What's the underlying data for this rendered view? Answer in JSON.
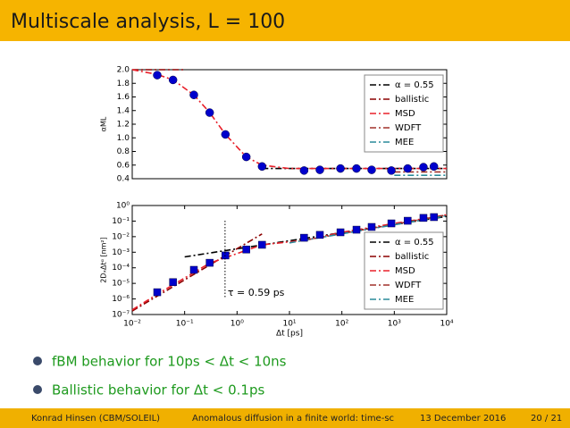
{
  "header": {
    "title": "Multiscale analysis, L = 100"
  },
  "chart_data": [
    {
      "type": "line",
      "ylabel": "αML",
      "xscale": "log",
      "xlim": [
        0.01,
        10000
      ],
      "ylim": [
        0.4,
        2.0
      ],
      "yticks": [
        0.4,
        0.6,
        0.8,
        {
          "value": 1,
          "label": "1.0"
        },
        1.2,
        1.4,
        1.6,
        1.8,
        {
          "value": 2,
          "label": "2.0"
        }
      ],
      "legend": "upper right",
      "linestyle": "dashdot",
      "series": [
        {
          "name": "α = 0.55",
          "color": "#000000",
          "x": [
            3,
            10000
          ],
          "values": [
            0.55,
            0.55
          ]
        },
        {
          "name": "ballistic",
          "color": "#8b0000",
          "x": [
            0.01,
            0.1
          ],
          "values": [
            2,
            2
          ]
        },
        {
          "name": "MSD",
          "color": "#e8202a",
          "x": [
            0.01,
            0.03,
            0.06,
            0.15,
            0.3,
            0.6,
            1.5,
            3,
            10,
            100,
            1000,
            10000
          ],
          "values": [
            2,
            1.93,
            1.85,
            1.63,
            1.37,
            1.05,
            0.72,
            0.6,
            0.55,
            0.55,
            0.55,
            0.55
          ]
        },
        {
          "name": "WDFT",
          "color": "#a0302a",
          "x": [
            1000,
            10000
          ],
          "values": [
            0.5,
            0.5
          ]
        },
        {
          "name": "MEE",
          "color": "#2a8a9a",
          "x": [
            1000,
            10000
          ],
          "values": [
            0.45,
            0.45
          ]
        }
      ],
      "markers": {
        "marker": "circle",
        "color": "#0000cc",
        "x": [
          0.03,
          0.06,
          0.15,
          0.3,
          0.6,
          1.5,
          3,
          19,
          38,
          94,
          190,
          370,
          880,
          1800,
          3600,
          5700
        ],
        "values": [
          1.92,
          1.85,
          1.63,
          1.37,
          1.05,
          0.72,
          0.58,
          0.52,
          0.53,
          0.55,
          0.55,
          0.53,
          0.52,
          0.55,
          0.57,
          0.58
        ]
      }
    },
    {
      "type": "line",
      "ylabel": "2DₓΔtᵅ [nm²]",
      "xlabel": "Δt [ps]",
      "xscale": "log",
      "yscale": "log",
      "xlim": [
        0.01,
        10000
      ],
      "ylim": [
        1e-07,
        1
      ],
      "xticks": [
        {
          "value": 0.01,
          "label": "10⁻²"
        },
        {
          "value": 0.1,
          "label": "10⁻¹"
        },
        {
          "value": 1,
          "label": "10⁰"
        },
        {
          "value": 10,
          "label": "10¹"
        },
        {
          "value": 100,
          "label": "10²"
        },
        {
          "value": 1000,
          "label": "10³"
        },
        {
          "value": 10000,
          "label": "10⁴"
        }
      ],
      "yticks": [
        {
          "value": 1e-07,
          "label": "10⁻⁷"
        },
        {
          "value": 1e-06,
          "label": "10⁻⁶"
        },
        {
          "value": 1e-05,
          "label": "10⁻⁵"
        },
        {
          "value": 0.0001,
          "label": "10⁻⁴"
        },
        {
          "value": 0.001,
          "label": "10⁻³"
        },
        {
          "value": 0.01,
          "label": "10⁻²"
        },
        {
          "value": 0.1,
          "label": "10⁻¹"
        },
        {
          "value": 1,
          "label": "10⁰"
        }
      ],
      "legend": "lower right",
      "linestyle": "dashdot",
      "annotation": {
        "text": "τ = 0.59 ps",
        "x": 0.59
      },
      "series": [
        {
          "name": "α = 0.55",
          "color": "#000000",
          "x": [
            0.1,
            10000
          ],
          "values": [
            0.0005,
            0.2
          ]
        },
        {
          "name": "ballistic",
          "color": "#8b0000",
          "x": [
            0.01,
            3
          ],
          "values": [
            1.7e-07,
            0.015
          ]
        },
        {
          "name": "MSD",
          "color": "#e8202a",
          "x": [
            0.01,
            0.03,
            0.3,
            3,
            20,
            100,
            1000,
            10000
          ],
          "values": [
            2e-07,
            2e-06,
            0.0002,
            0.003,
            0.006,
            0.019,
            0.07,
            0.25
          ]
        },
        {
          "name": "WDFT",
          "color": "#a0302a",
          "x": [
            20,
            10000
          ],
          "values": [
            0.006,
            0.25
          ]
        },
        {
          "name": "MEE",
          "color": "#2a8a9a",
          "x": [
            10,
            10000
          ],
          "values": [
            0.004,
            0.22
          ]
        }
      ],
      "markers": {
        "marker": "square",
        "color": "#0000cc",
        "x": [
          0.03,
          0.06,
          0.15,
          0.3,
          0.6,
          1.5,
          3,
          19,
          38,
          94,
          190,
          370,
          880,
          1800,
          3600,
          5700
        ],
        "values": [
          2.7e-06,
          1.2e-05,
          7.4e-05,
          0.00021,
          0.00062,
          0.0015,
          0.003,
          0.0085,
          0.013,
          0.019,
          0.028,
          0.042,
          0.071,
          0.105,
          0.16,
          0.18
        ]
      }
    }
  ],
  "bullets": [
    "fBM behavior for 10ps < Δt < 10ns",
    "Ballistic behavior for Δt < 0.1ps"
  ],
  "footer": {
    "author": "Konrad Hinsen (CBM/SOLEIL)",
    "title": "Anomalous diffusion in a finite world: time-sc",
    "date": "13 December 2016",
    "page": "20 / 21"
  }
}
